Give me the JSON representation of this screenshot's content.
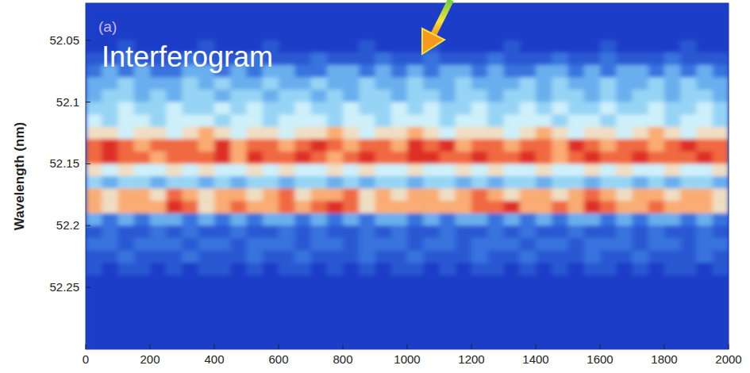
{
  "chart_data": {
    "type": "heatmap",
    "title": "Interferogram",
    "annotations": [
      "(a)"
    ],
    "y_label": "Wavelength (nm)",
    "xlim": [
      0,
      2000
    ],
    "xticks": [
      0,
      200,
      400,
      600,
      800,
      1000,
      1200,
      1400,
      1600,
      1800,
      2000
    ],
    "ylim": [
      52.02,
      52.3
    ],
    "yticks": [
      52.05,
      52.1,
      52.15,
      52.2,
      52.25
    ],
    "zlim": [
      0,
      10
    ],
    "x": [
      25,
      75,
      125,
      175,
      225,
      275,
      325,
      375,
      425,
      475,
      525,
      575,
      625,
      675,
      725,
      775,
      825,
      875,
      925,
      975,
      1025,
      1075,
      1125,
      1175,
      1225,
      1275,
      1325,
      1375,
      1425,
      1475,
      1525,
      1575,
      1625,
      1675,
      1725,
      1775,
      1825,
      1875,
      1925,
      1975
    ],
    "y": [
      52.025,
      52.035,
      52.045,
      52.055,
      52.065,
      52.075,
      52.085,
      52.095,
      52.105,
      52.115,
      52.125,
      52.135,
      52.145,
      52.155,
      52.165,
      52.175,
      52.185,
      52.195,
      52.205,
      52.215,
      52.225,
      52.235,
      52.245,
      52.255,
      52.265,
      52.275,
      52.285,
      52.295
    ],
    "values": [
      [
        0,
        0,
        0,
        0,
        0,
        0,
        0,
        0,
        0,
        0,
        0,
        0,
        0,
        0,
        0,
        0,
        0,
        0,
        0,
        0,
        0,
        0,
        0,
        0,
        0,
        0,
        0,
        0,
        0,
        0,
        0,
        0,
        0,
        0,
        0,
        0,
        0,
        0,
        0,
        0
      ],
      [
        0,
        0,
        0,
        0,
        0,
        0,
        0,
        0,
        0,
        0,
        0,
        0,
        0,
        0,
        0,
        0,
        0,
        0,
        0,
        0,
        0,
        0,
        0,
        0,
        0,
        0,
        0,
        0,
        0,
        0,
        0,
        0,
        0,
        0,
        0,
        0,
        0,
        0,
        0,
        0
      ],
      [
        0,
        0,
        0,
        0,
        0,
        0,
        0,
        0,
        0,
        0,
        0,
        0,
        0,
        0,
        0,
        0,
        0,
        0,
        0,
        0,
        0,
        0,
        0,
        0,
        0,
        0,
        0,
        0,
        0,
        0,
        0,
        0,
        0,
        0,
        0,
        0,
        0,
        0,
        0,
        0
      ],
      [
        0,
        0,
        1,
        0,
        0,
        0,
        0,
        1,
        0,
        0,
        0,
        1,
        0,
        0,
        0,
        0,
        0,
        1,
        0,
        0,
        0,
        1,
        0,
        0,
        0,
        0,
        1,
        0,
        0,
        0,
        0,
        0,
        1,
        0,
        0,
        0,
        0,
        1,
        0,
        0
      ],
      [
        1,
        1,
        2,
        1,
        1,
        1,
        2,
        1,
        1,
        1,
        2,
        1,
        1,
        1,
        2,
        1,
        1,
        1,
        2,
        1,
        1,
        2,
        1,
        1,
        1,
        2,
        1,
        1,
        1,
        2,
        1,
        1,
        2,
        1,
        1,
        1,
        2,
        1,
        1,
        1
      ],
      [
        2,
        3,
        2,
        3,
        2,
        2,
        3,
        3,
        2,
        3,
        2,
        3,
        3,
        2,
        2,
        3,
        3,
        2,
        3,
        2,
        3,
        2,
        3,
        3,
        2,
        3,
        2,
        2,
        3,
        3,
        2,
        3,
        2,
        3,
        3,
        2,
        3,
        2,
        3,
        2
      ],
      [
        3,
        3,
        4,
        3,
        3,
        3,
        4,
        3,
        4,
        3,
        3,
        4,
        3,
        3,
        4,
        3,
        3,
        4,
        3,
        3,
        4,
        3,
        3,
        4,
        3,
        3,
        3,
        4,
        3,
        4,
        3,
        3,
        4,
        3,
        3,
        4,
        3,
        4,
        3,
        3
      ],
      [
        3,
        4,
        4,
        3,
        4,
        3,
        4,
        4,
        3,
        4,
        4,
        3,
        4,
        4,
        3,
        4,
        3,
        4,
        4,
        3,
        4,
        4,
        3,
        4,
        4,
        3,
        4,
        4,
        3,
        4,
        4,
        3,
        4,
        3,
        4,
        4,
        3,
        4,
        4,
        3
      ],
      [
        4,
        4,
        5,
        4,
        4,
        5,
        4,
        4,
        5,
        4,
        5,
        4,
        4,
        5,
        4,
        4,
        5,
        4,
        4,
        5,
        4,
        5,
        4,
        4,
        5,
        4,
        4,
        5,
        4,
        5,
        4,
        4,
        5,
        4,
        4,
        5,
        4,
        4,
        5,
        4
      ],
      [
        5,
        4,
        5,
        5,
        4,
        5,
        5,
        5,
        4,
        5,
        5,
        4,
        5,
        5,
        5,
        4,
        5,
        5,
        4,
        5,
        5,
        5,
        4,
        5,
        5,
        4,
        5,
        5,
        5,
        4,
        5,
        5,
        4,
        5,
        5,
        5,
        4,
        5,
        5,
        4
      ],
      [
        6,
        6,
        5,
        6,
        6,
        5,
        6,
        7,
        6,
        5,
        6,
        6,
        5,
        6,
        6,
        7,
        6,
        5,
        6,
        6,
        7,
        6,
        5,
        6,
        6,
        6,
        5,
        6,
        7,
        6,
        5,
        6,
        6,
        5,
        6,
        7,
        6,
        5,
        6,
        6
      ],
      [
        8,
        9,
        8,
        7,
        8,
        8,
        8,
        7,
        9,
        7,
        8,
        8,
        7,
        8,
        9,
        8,
        7,
        8,
        8,
        7,
        9,
        8,
        9,
        7,
        8,
        8,
        7,
        8,
        8,
        7,
        9,
        8,
        7,
        8,
        8,
        7,
        8,
        9,
        8,
        8
      ],
      [
        8,
        9,
        8,
        8,
        7,
        8,
        8,
        8,
        9,
        7,
        9,
        8,
        8,
        9,
        8,
        7,
        8,
        9,
        8,
        8,
        9,
        9,
        8,
        8,
        9,
        8,
        8,
        9,
        8,
        7,
        8,
        9,
        8,
        8,
        9,
        8,
        8,
        8,
        9,
        8
      ],
      [
        6,
        5,
        6,
        5,
        5,
        6,
        5,
        6,
        5,
        5,
        6,
        5,
        6,
        5,
        5,
        6,
        5,
        6,
        5,
        5,
        6,
        5,
        5,
        6,
        5,
        6,
        5,
        5,
        6,
        5,
        5,
        6,
        5,
        6,
        5,
        5,
        6,
        5,
        5,
        6
      ],
      [
        4,
        3,
        4,
        4,
        3,
        4,
        4,
        3,
        4,
        3,
        4,
        4,
        3,
        4,
        4,
        3,
        4,
        3,
        4,
        4,
        3,
        4,
        4,
        3,
        4,
        3,
        4,
        4,
        3,
        4,
        4,
        3,
        4,
        4,
        3,
        4,
        3,
        4,
        4,
        3
      ],
      [
        7,
        6,
        7,
        7,
        6,
        8,
        7,
        6,
        7,
        7,
        6,
        7,
        8,
        6,
        7,
        7,
        8,
        6,
        7,
        6,
        7,
        7,
        6,
        7,
        8,
        7,
        6,
        7,
        7,
        6,
        7,
        8,
        7,
        6,
        7,
        7,
        6,
        7,
        7,
        6
      ],
      [
        7,
        6,
        7,
        7,
        7,
        9,
        8,
        6,
        7,
        8,
        7,
        7,
        8,
        7,
        8,
        9,
        8,
        6,
        7,
        7,
        7,
        7,
        7,
        7,
        8,
        8,
        9,
        7,
        7,
        8,
        7,
        9,
        8,
        7,
        7,
        8,
        7,
        7,
        7,
        6
      ],
      [
        3,
        2,
        3,
        2,
        3,
        3,
        2,
        3,
        2,
        3,
        2,
        3,
        3,
        2,
        3,
        2,
        3,
        2,
        3,
        3,
        2,
        3,
        2,
        3,
        3,
        2,
        3,
        2,
        3,
        2,
        3,
        3,
        2,
        3,
        2,
        3,
        3,
        2,
        3,
        2
      ],
      [
        1,
        2,
        1,
        1,
        2,
        1,
        2,
        1,
        1,
        2,
        1,
        1,
        2,
        1,
        2,
        1,
        1,
        2,
        1,
        2,
        1,
        1,
        2,
        1,
        1,
        2,
        1,
        2,
        1,
        1,
        2,
        1,
        1,
        2,
        1,
        2,
        1,
        1,
        2,
        1
      ],
      [
        2,
        2,
        1,
        2,
        2,
        2,
        1,
        2,
        2,
        1,
        2,
        2,
        2,
        1,
        2,
        2,
        1,
        2,
        2,
        2,
        1,
        2,
        2,
        1,
        2,
        2,
        2,
        1,
        2,
        2,
        1,
        2,
        2,
        2,
        1,
        2,
        2,
        1,
        2,
        2
      ],
      [
        1,
        1,
        2,
        1,
        1,
        1,
        2,
        1,
        1,
        1,
        2,
        1,
        1,
        2,
        1,
        1,
        1,
        2,
        1,
        1,
        2,
        1,
        1,
        1,
        2,
        1,
        1,
        2,
        1,
        1,
        1,
        2,
        1,
        1,
        2,
        1,
        1,
        1,
        2,
        1
      ],
      [
        1,
        0,
        1,
        1,
        0,
        1,
        0,
        1,
        1,
        0,
        1,
        0,
        1,
        1,
        0,
        1,
        0,
        1,
        0,
        1,
        1,
        0,
        1,
        0,
        1,
        1,
        0,
        1,
        0,
        1,
        0,
        1,
        1,
        0,
        1,
        0,
        1,
        1,
        0,
        1
      ],
      [
        0,
        0,
        0,
        0,
        0,
        0,
        0,
        0,
        0,
        0,
        0,
        0,
        0,
        0,
        0,
        0,
        0,
        0,
        0,
        0,
        0,
        0,
        0,
        0,
        0,
        0,
        0,
        0,
        0,
        0,
        0,
        0,
        0,
        0,
        0,
        0,
        0,
        0,
        0,
        0
      ],
      [
        0,
        0,
        0,
        0,
        0,
        0,
        0,
        0,
        0,
        0,
        0,
        0,
        0,
        0,
        0,
        0,
        0,
        0,
        0,
        0,
        0,
        0,
        0,
        0,
        0,
        0,
        0,
        0,
        0,
        0,
        0,
        0,
        0,
        0,
        0,
        0,
        0,
        0,
        0,
        0
      ],
      [
        0,
        0,
        0,
        0,
        0,
        0,
        0,
        0,
        0,
        0,
        0,
        0,
        0,
        0,
        0,
        0,
        0,
        0,
        0,
        0,
        0,
        0,
        0,
        0,
        0,
        0,
        0,
        0,
        0,
        0,
        0,
        0,
        0,
        0,
        0,
        0,
        0,
        0,
        0,
        0
      ],
      [
        0,
        0,
        0,
        0,
        0,
        0,
        0,
        0,
        0,
        0,
        0,
        0,
        0,
        0,
        0,
        0,
        0,
        0,
        0,
        0,
        0,
        0,
        0,
        0,
        0,
        0,
        0,
        0,
        0,
        0,
        0,
        0,
        0,
        0,
        0,
        0,
        0,
        0,
        0,
        0
      ],
      [
        0,
        0,
        0,
        0,
        0,
        0,
        0,
        0,
        0,
        0,
        0,
        0,
        0,
        0,
        0,
        0,
        0,
        0,
        0,
        0,
        0,
        0,
        0,
        0,
        0,
        0,
        0,
        0,
        0,
        0,
        0,
        0,
        0,
        0,
        0,
        0,
        0,
        0,
        0,
        0
      ],
      [
        0,
        0,
        0,
        0,
        0,
        0,
        0,
        0,
        0,
        0,
        0,
        0,
        0,
        0,
        0,
        0,
        0,
        0,
        0,
        0,
        0,
        0,
        0,
        0,
        0,
        0,
        0,
        0,
        0,
        0,
        0,
        0,
        0,
        0,
        0,
        0,
        0,
        0,
        0,
        0
      ]
    ]
  }
}
